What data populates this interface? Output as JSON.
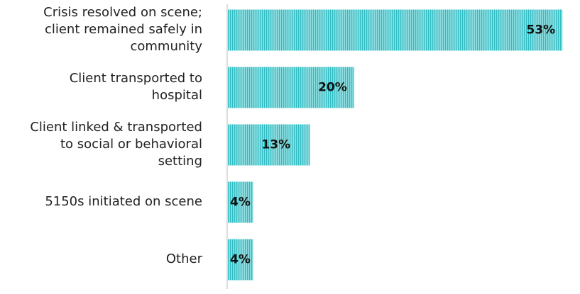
{
  "chart_data": {
    "type": "bar",
    "orientation": "horizontal",
    "categories": [
      "Crisis resolved on scene;\nclient remained safely in\ncommunity",
      "Client transported to\nhospital",
      "Client linked & transported\nto social or behavioral\nsetting",
      "5150s initiated on scene",
      "Other"
    ],
    "values": [
      53,
      20,
      13,
      4,
      4
    ],
    "value_labels": [
      "53%",
      "20%",
      "13%",
      "4%",
      "4%"
    ],
    "xlim": [
      0,
      55
    ],
    "grid": false,
    "legend": "none",
    "title": "",
    "xlabel": "",
    "ylabel": ""
  },
  "colors": {
    "bar_fill": "#8fdcdf",
    "bar_stripe": "#2fbcc3",
    "axis": "#bbbbbb",
    "label_text": "#222222",
    "value_text": "#111111"
  }
}
